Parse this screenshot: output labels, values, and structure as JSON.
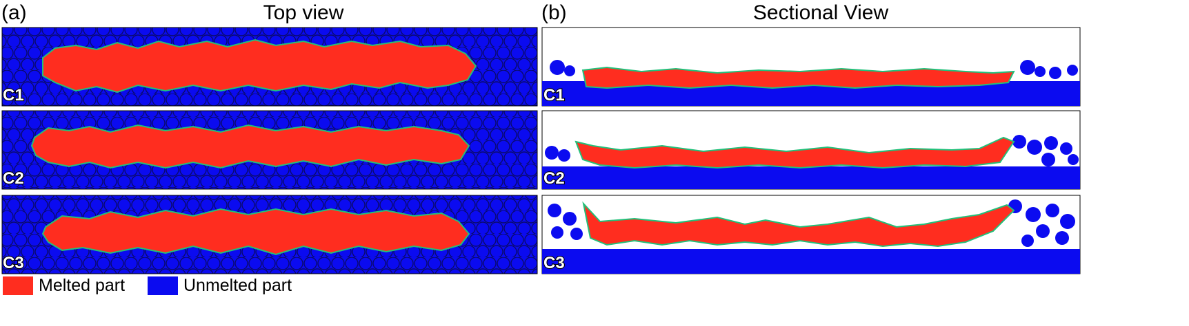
{
  "panels": [
    {
      "letter": "(a)",
      "title": "Top view"
    },
    {
      "letter": "(b)",
      "title": "Sectional View"
    }
  ],
  "cases": [
    "C1",
    "C2",
    "C3"
  ],
  "legend": [
    {
      "label": "Melted part",
      "color": "#ff2d1f"
    },
    {
      "label": "Unmelted part",
      "color": "#0b0bf0"
    }
  ],
  "colors": {
    "melted": "#ff2d1f",
    "unmelted": "#0b0bf0",
    "particle_outline": "#0a0a70",
    "interface": "#22c07a",
    "background": "#ffffff"
  }
}
